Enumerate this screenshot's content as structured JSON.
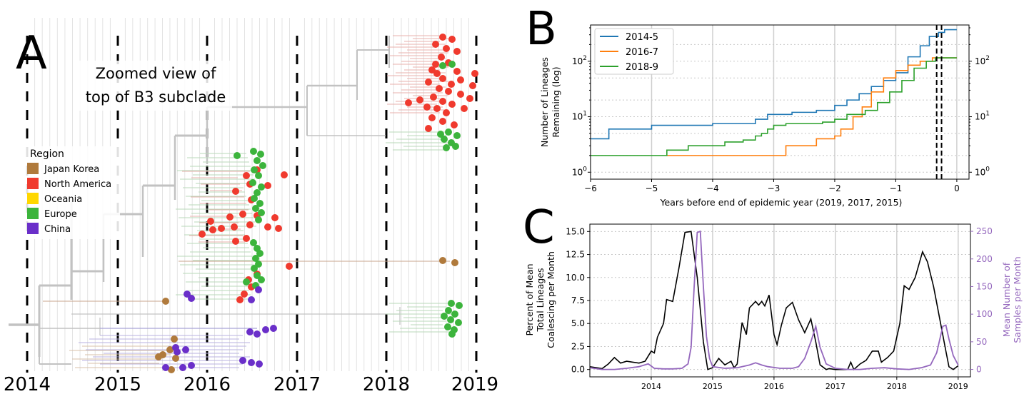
{
  "colors": {
    "japan_korea": "#b07a3c",
    "north_america": "#f03a2e",
    "oceania": "#ffd700",
    "europe": "#3cb43c",
    "china": "#6a2fc9",
    "line_2014": "#1f77b4",
    "line_2016": "#ff7f0e",
    "line_2018": "#2ca02c",
    "samples": "#9467bd"
  },
  "panel_a": {
    "letter": "A",
    "annotation_line1": "Zoomed view of",
    "annotation_line2": "top of B3 subclade",
    "legend_title": "Region",
    "legend": [
      {
        "label": "Japan Korea",
        "color_key": "japan_korea"
      },
      {
        "label": "North America",
        "color_key": "north_america"
      },
      {
        "label": "Oceania",
        "color_key": "oceania"
      },
      {
        "label": "Europe",
        "color_key": "europe"
      },
      {
        "label": "China",
        "color_key": "china"
      }
    ],
    "year_ticks": [
      "2014",
      "2015",
      "2016",
      "2017",
      "2018",
      "2019"
    ]
  },
  "chart_data": [
    {
      "panel": "B",
      "type": "line",
      "letter": "B",
      "xlabel": "Years before end of epidemic year (2019, 2017, 2015)",
      "ylabel_line1": "Number of Lineages",
      "ylabel_line2": "Remaining (log)",
      "xlim": [
        -6,
        0.2
      ],
      "ylim": [
        0.75,
        450
      ],
      "yscale": "log",
      "xticks": [
        "−6",
        "−5",
        "−4",
        "−3",
        "−2",
        "−1",
        "0"
      ],
      "yticks": [
        "10^0",
        "10^1",
        "10^2"
      ],
      "legend_position": "top-left",
      "dashed_verticals": [
        -0.33,
        -0.25
      ],
      "series": [
        {
          "name": "2014-5",
          "color_key": "line_2014",
          "points": [
            [
              -6,
              4
            ],
            [
              -5.7,
              4
            ],
            [
              -5.7,
              6
            ],
            [
              -5.0,
              6
            ],
            [
              -5.0,
              7
            ],
            [
              -4.0,
              7
            ],
            [
              -4.0,
              7.5
            ],
            [
              -3.3,
              7.5
            ],
            [
              -3.3,
              9
            ],
            [
              -3.1,
              11
            ],
            [
              -2.7,
              12
            ],
            [
              -2.3,
              13
            ],
            [
              -2.0,
              16
            ],
            [
              -1.8,
              20
            ],
            [
              -1.6,
              26
            ],
            [
              -1.4,
              35
            ],
            [
              -1.2,
              45
            ],
            [
              -1.0,
              62
            ],
            [
              -0.8,
              120
            ],
            [
              -0.6,
              190
            ],
            [
              -0.45,
              280
            ],
            [
              -0.3,
              330
            ],
            [
              -0.2,
              370
            ],
            [
              0,
              370
            ]
          ]
        },
        {
          "name": "2016-7",
          "color_key": "line_2016",
          "points": [
            [
              -4.75,
              2
            ],
            [
              -3.8,
              2
            ],
            [
              -3.5,
              2
            ],
            [
              -3.5,
              2
            ],
            [
              -2.8,
              2
            ],
            [
              -2.8,
              3
            ],
            [
              -2.3,
              3
            ],
            [
              -2.3,
              4
            ],
            [
              -2.0,
              4.5
            ],
            [
              -1.9,
              6
            ],
            [
              -1.7,
              10
            ],
            [
              -1.55,
              15
            ],
            [
              -1.4,
              28
            ],
            [
              -1.2,
              50
            ],
            [
              -1.0,
              68
            ],
            [
              -0.8,
              85
            ],
            [
              -0.6,
              100
            ],
            [
              -0.4,
              115
            ],
            [
              0,
              115
            ]
          ]
        },
        {
          "name": "2018-9",
          "color_key": "line_2018",
          "points": [
            [
              -6,
              2
            ],
            [
              -4.75,
              2
            ],
            [
              -4.75,
              2.5
            ],
            [
              -4.4,
              3
            ],
            [
              -3.8,
              3.5
            ],
            [
              -3.5,
              3.8
            ],
            [
              -3.3,
              4.5
            ],
            [
              -3.2,
              5
            ],
            [
              -3.1,
              6
            ],
            [
              -3.0,
              7
            ],
            [
              -2.8,
              7.5
            ],
            [
              -2.2,
              8
            ],
            [
              -2.0,
              9
            ],
            [
              -1.8,
              11
            ],
            [
              -1.5,
              13
            ],
            [
              -1.3,
              18
            ],
            [
              -1.1,
              28
            ],
            [
              -0.9,
              45
            ],
            [
              -0.7,
              75
            ],
            [
              -0.5,
              100
            ],
            [
              -0.35,
              115
            ],
            [
              0,
              115
            ]
          ]
        }
      ]
    },
    {
      "panel": "C",
      "type": "line",
      "letter": "C",
      "ylabel_left_line1": "Percent of Mean",
      "ylabel_left_line2": "Total Lineages",
      "ylabel_left_line3": "Coalescing per Month",
      "ylabel_right_line1": "Mean Number of",
      "ylabel_right_line2": "Samples per Month",
      "xlim": [
        2013.0,
        2019.2
      ],
      "ylim_left": [
        -0.8,
        15.8
      ],
      "ylim_right": [
        -13.5,
        263
      ],
      "xticks": [
        "2014",
        "2015",
        "2016",
        "2017",
        "2018",
        "2019"
      ],
      "yticks_left": [
        "0.0",
        "2.5",
        "5.0",
        "7.5",
        "10.0",
        "12.5",
        "15.0"
      ],
      "yticks_right": [
        "0",
        "50",
        "100",
        "150",
        "200",
        "250"
      ],
      "series": [
        {
          "name": "",
          "axis": "left",
          "color_key": "black",
          "points": [
            [
              2013.0,
              0.3
            ],
            [
              2013.1,
              0.2
            ],
            [
              2013.2,
              0.1
            ],
            [
              2013.3,
              0.6
            ],
            [
              2013.4,
              1.3
            ],
            [
              2013.5,
              0.7
            ],
            [
              2013.6,
              0.9
            ],
            [
              2013.7,
              0.8
            ],
            [
              2013.8,
              0.7
            ],
            [
              2013.9,
              0.9
            ],
            [
              2014.0,
              2.0
            ],
            [
              2014.05,
              1.8
            ],
            [
              2014.1,
              3.5
            ],
            [
              2014.2,
              5.0
            ],
            [
              2014.25,
              7.6
            ],
            [
              2014.35,
              7.4
            ],
            [
              2014.45,
              11.0
            ],
            [
              2014.55,
              14.9
            ],
            [
              2014.65,
              15.0
            ],
            [
              2014.75,
              10.0
            ],
            [
              2014.85,
              3.0
            ],
            [
              2014.92,
              0.0
            ],
            [
              2015.0,
              0.2
            ],
            [
              2015.1,
              1.2
            ],
            [
              2015.2,
              0.5
            ],
            [
              2015.3,
              0.9
            ],
            [
              2015.35,
              0.2
            ],
            [
              2015.4,
              0.6
            ],
            [
              2015.48,
              5.1
            ],
            [
              2015.55,
              3.8
            ],
            [
              2015.6,
              6.7
            ],
            [
              2015.7,
              7.4
            ],
            [
              2015.75,
              7.0
            ],
            [
              2015.8,
              7.4
            ],
            [
              2015.85,
              6.9
            ],
            [
              2015.92,
              8.1
            ],
            [
              2016.0,
              3.8
            ],
            [
              2016.05,
              2.7
            ],
            [
              2016.12,
              4.8
            ],
            [
              2016.2,
              6.7
            ],
            [
              2016.3,
              7.3
            ],
            [
              2016.4,
              5.4
            ],
            [
              2016.5,
              4.0
            ],
            [
              2016.6,
              5.5
            ],
            [
              2016.68,
              3.0
            ],
            [
              2016.75,
              0.5
            ],
            [
              2016.85,
              0.0
            ],
            [
              2016.9,
              0.1
            ],
            [
              2017.0,
              0.0
            ],
            [
              2017.1,
              0.0
            ],
            [
              2017.2,
              0.0
            ],
            [
              2017.25,
              0.8
            ],
            [
              2017.3,
              0.0
            ],
            [
              2017.4,
              0.6
            ],
            [
              2017.5,
              1.0
            ],
            [
              2017.6,
              2.0
            ],
            [
              2017.7,
              2.0
            ],
            [
              2017.75,
              0.8
            ],
            [
              2017.85,
              1.3
            ],
            [
              2017.95,
              2.0
            ],
            [
              2018.05,
              5.0
            ],
            [
              2018.12,
              9.1
            ],
            [
              2018.2,
              8.7
            ],
            [
              2018.3,
              10.0
            ],
            [
              2018.42,
              12.8
            ],
            [
              2018.5,
              11.7
            ],
            [
              2018.6,
              9.0
            ],
            [
              2018.7,
              5.5
            ],
            [
              2018.8,
              2.0
            ],
            [
              2018.85,
              0.3
            ],
            [
              2018.92,
              0.0
            ],
            [
              2019.0,
              0.4
            ]
          ]
        },
        {
          "name": "",
          "axis": "right",
          "color_key": "samples",
          "points": [
            [
              2013.0,
              3
            ],
            [
              2013.2,
              0
            ],
            [
              2013.4,
              0
            ],
            [
              2013.6,
              2
            ],
            [
              2013.8,
              5
            ],
            [
              2013.95,
              10
            ],
            [
              2014.05,
              2
            ],
            [
              2014.2,
              1
            ],
            [
              2014.35,
              1
            ],
            [
              2014.5,
              2
            ],
            [
              2014.6,
              10
            ],
            [
              2014.65,
              40
            ],
            [
              2014.7,
              150
            ],
            [
              2014.75,
              248
            ],
            [
              2014.8,
              250
            ],
            [
              2014.85,
              150
            ],
            [
              2014.9,
              60
            ],
            [
              2014.95,
              20
            ],
            [
              2015.0,
              5
            ],
            [
              2015.2,
              2
            ],
            [
              2015.4,
              3
            ],
            [
              2015.6,
              8
            ],
            [
              2015.7,
              12
            ],
            [
              2015.8,
              8
            ],
            [
              2015.9,
              5
            ],
            [
              2016.1,
              2
            ],
            [
              2016.3,
              2
            ],
            [
              2016.4,
              5
            ],
            [
              2016.5,
              20
            ],
            [
              2016.6,
              50
            ],
            [
              2016.68,
              78
            ],
            [
              2016.75,
              40
            ],
            [
              2016.85,
              10
            ],
            [
              2017.0,
              2
            ],
            [
              2017.2,
              0
            ],
            [
              2017.4,
              0
            ],
            [
              2017.6,
              2
            ],
            [
              2017.8,
              3
            ],
            [
              2018.0,
              1
            ],
            [
              2018.2,
              0
            ],
            [
              2018.4,
              3
            ],
            [
              2018.55,
              8
            ],
            [
              2018.65,
              30
            ],
            [
              2018.75,
              78
            ],
            [
              2018.8,
              80
            ],
            [
              2018.85,
              55
            ],
            [
              2018.92,
              25
            ],
            [
              2019.0,
              8
            ]
          ]
        }
      ]
    }
  ]
}
